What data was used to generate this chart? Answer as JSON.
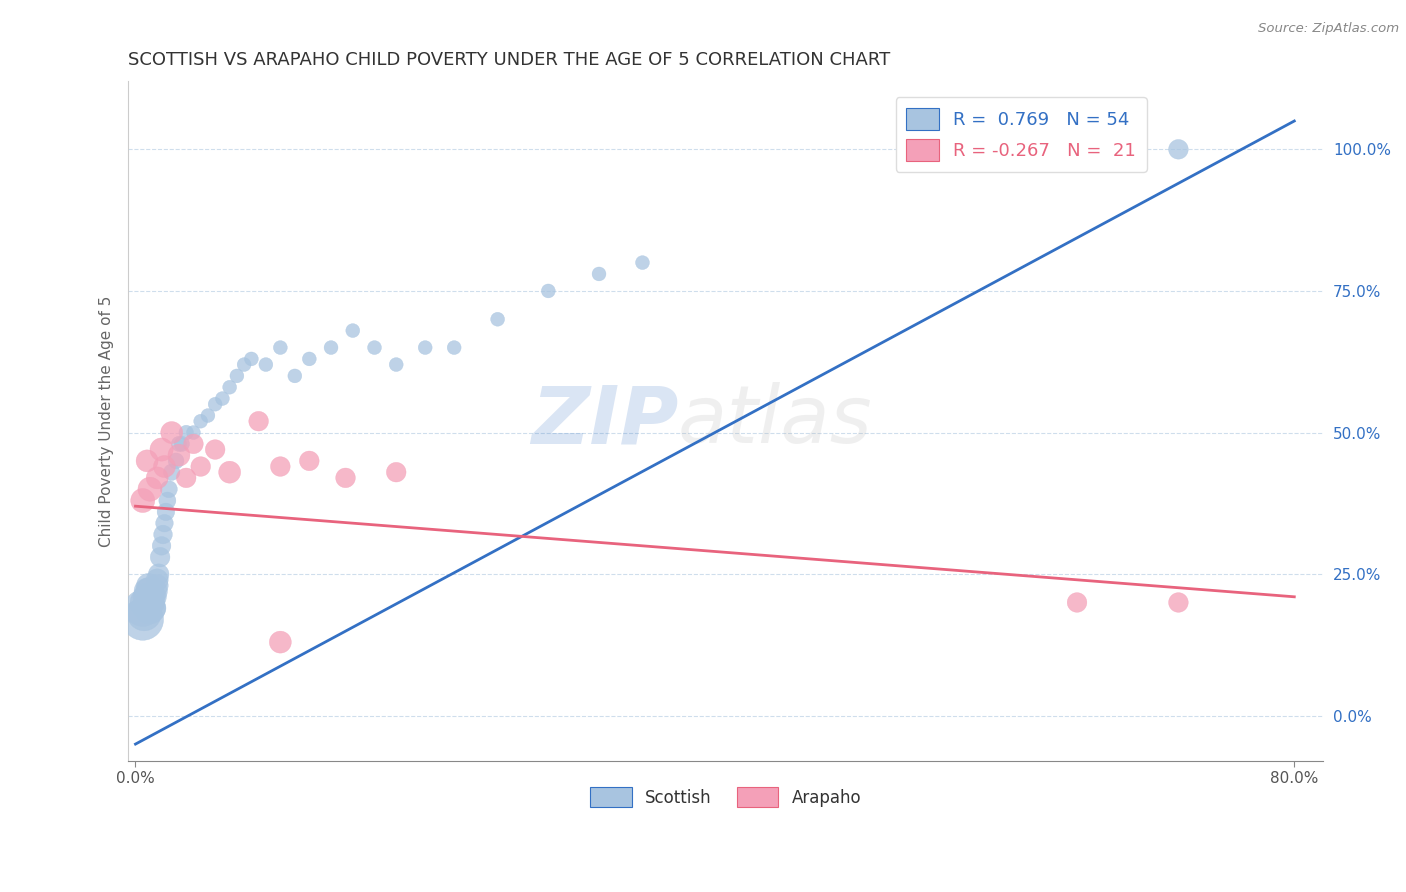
{
  "title": "SCOTTISH VS ARAPAHO CHILD POVERTY UNDER THE AGE OF 5 CORRELATION CHART",
  "source": "Source: ZipAtlas.com",
  "ylabel": "Child Poverty Under the Age of 5",
  "watermark_zip": "ZIP",
  "watermark_atlas": "atlas",
  "xlim": [
    -0.005,
    0.82
  ],
  "ylim": [
    -0.08,
    1.12
  ],
  "xtick_positions": [
    0.0,
    0.8
  ],
  "xtick_labels": [
    "0.0%",
    "80.0%"
  ],
  "ytick_positions": [
    0.0,
    0.25,
    0.5,
    0.75,
    1.0
  ],
  "ytick_labels": [
    "0.0%",
    "25.0%",
    "50.0%",
    "75.0%",
    "100.0%"
  ],
  "scottish_color": "#a8c4e0",
  "arapaho_color": "#f4a0b8",
  "blue_line_color": "#3370c4",
  "pink_line_color": "#e8637d",
  "legend_R_scottish": "0.769",
  "legend_N_scottish": "54",
  "legend_R_arapaho": "-0.267",
  "legend_N_arapaho": "21",
  "scottish_x": [
    0.005,
    0.005,
    0.006,
    0.007,
    0.008,
    0.008,
    0.009,
    0.009,
    0.01,
    0.01,
    0.011,
    0.012,
    0.013,
    0.013,
    0.014,
    0.015,
    0.015,
    0.016,
    0.017,
    0.018,
    0.019,
    0.02,
    0.021,
    0.022,
    0.023,
    0.025,
    0.028,
    0.03,
    0.032,
    0.035,
    0.04,
    0.045,
    0.05,
    0.055,
    0.06,
    0.065,
    0.07,
    0.075,
    0.08,
    0.09,
    0.1,
    0.11,
    0.12,
    0.135,
    0.15,
    0.165,
    0.18,
    0.2,
    0.22,
    0.25,
    0.285,
    0.32,
    0.35,
    0.72
  ],
  "scottish_y": [
    0.17,
    0.19,
    0.18,
    0.2,
    0.21,
    0.22,
    0.2,
    0.23,
    0.19,
    0.22,
    0.21,
    0.2,
    0.19,
    0.21,
    0.22,
    0.23,
    0.24,
    0.25,
    0.28,
    0.3,
    0.32,
    0.34,
    0.36,
    0.38,
    0.4,
    0.43,
    0.45,
    0.48,
    0.48,
    0.5,
    0.5,
    0.52,
    0.53,
    0.55,
    0.56,
    0.58,
    0.6,
    0.62,
    0.63,
    0.62,
    0.65,
    0.6,
    0.63,
    0.65,
    0.68,
    0.65,
    0.62,
    0.65,
    0.65,
    0.7,
    0.75,
    0.78,
    0.8,
    1.0
  ],
  "scottish_sizes": [
    900,
    700,
    600,
    500,
    400,
    350,
    400,
    300,
    500,
    400,
    350,
    300,
    280,
    300,
    280,
    250,
    250,
    220,
    200,
    180,
    180,
    160,
    160,
    150,
    150,
    140,
    130,
    120,
    120,
    110,
    100,
    100,
    100,
    100,
    100,
    100,
    100,
    100,
    100,
    100,
    100,
    100,
    100,
    100,
    100,
    100,
    100,
    100,
    100,
    100,
    100,
    100,
    100,
    200
  ],
  "arapaho_x": [
    0.005,
    0.008,
    0.01,
    0.015,
    0.018,
    0.02,
    0.025,
    0.03,
    0.035,
    0.04,
    0.045,
    0.055,
    0.065,
    0.085,
    0.1,
    0.12,
    0.145,
    0.18,
    0.1,
    0.65,
    0.72
  ],
  "arapaho_y": [
    0.38,
    0.45,
    0.4,
    0.42,
    0.47,
    0.44,
    0.5,
    0.46,
    0.42,
    0.48,
    0.44,
    0.47,
    0.43,
    0.52,
    0.44,
    0.45,
    0.42,
    0.43,
    0.13,
    0.2,
    0.2
  ],
  "arapaho_sizes": [
    300,
    250,
    300,
    250,
    280,
    250,
    250,
    250,
    200,
    200,
    200,
    200,
    250,
    200,
    200,
    200,
    200,
    200,
    250,
    200,
    200
  ],
  "blue_line_x0": 0.0,
  "blue_line_y0": -0.05,
  "blue_line_x1": 0.8,
  "blue_line_y1": 1.05,
  "pink_line_x0": 0.0,
  "pink_line_y0": 0.37,
  "pink_line_x1": 0.8,
  "pink_line_y1": 0.21
}
